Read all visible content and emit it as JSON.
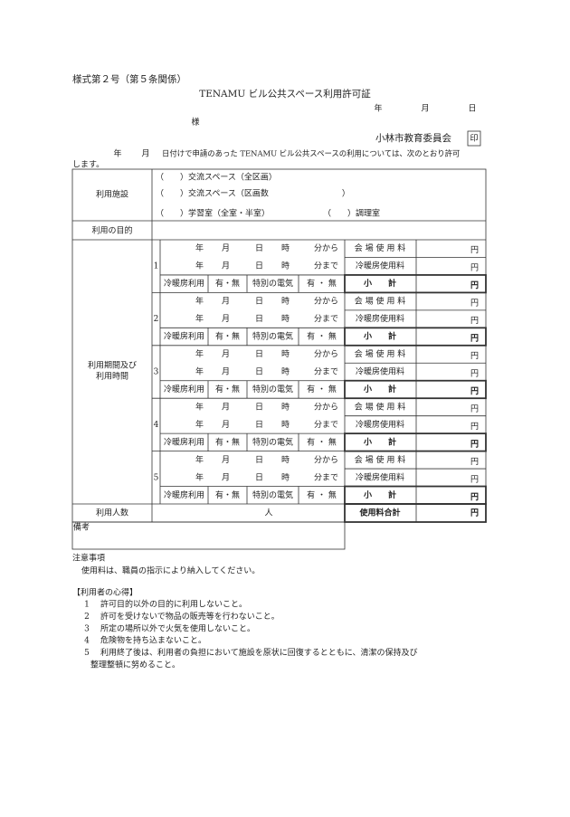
{
  "header": {
    "form_number": "様式第２号（第５条関係）",
    "title": "TENAMU ビル公共スペース利用許可証",
    "date": [
      "年",
      "月",
      "日"
    ],
    "addressee_suffix": "様",
    "issuer": "小林市教育委員会",
    "seal": "印",
    "intro_date": [
      "年",
      "月"
    ],
    "intro_line1": "日付けで申請のあった TENAMU ビル公共スペースの利用については、次のとおり許可",
    "intro_line2": "します。"
  },
  "table": {
    "facility_label": "利用施設",
    "facility_options": [
      [
        "（　　）交流スペース（全区画）"
      ],
      [
        "（　　）交流スペース（区画数　　　　　　　　　）"
      ],
      [
        "（　　）学習室（全室・半室）",
        "（　　）調理室"
      ]
    ],
    "purpose_label": "利用の目的",
    "period_label": [
      "利用期間及び",
      "利用時間"
    ],
    "periods": [
      {
        "number": "1",
        "start": [
          "年",
          "月",
          "日",
          "時",
          "分から"
        ],
        "end": [
          "年",
          "月",
          "日",
          "時",
          "分まで"
        ],
        "hall_fee": "会 場 使 用 料",
        "hall_unit": "円",
        "ac_fee": "冷暖房使用料",
        "ac_unit": "円",
        "ac_use": "冷暖房利用",
        "ac_choice": "有・無",
        "electric": "特別の電気",
        "electric_choice": "有 ・ 無",
        "subtotal": "小　　計",
        "subtotal_unit": "円"
      },
      {
        "number": "2",
        "start": [
          "年",
          "月",
          "日",
          "時",
          "分から"
        ],
        "end": [
          "年",
          "月",
          "日",
          "時",
          "分まで"
        ],
        "hall_fee": "会 場 使 用 料",
        "hall_unit": "円",
        "ac_fee": "冷暖房使用料",
        "ac_unit": "円",
        "ac_use": "冷暖房利用",
        "ac_choice": "有・無",
        "electric": "特別の電気",
        "electric_choice": "有 ・ 無",
        "subtotal": "小　　計",
        "subtotal_unit": "円"
      },
      {
        "number": "3",
        "start": [
          "年",
          "月",
          "日",
          "時",
          "分から"
        ],
        "end": [
          "年",
          "月",
          "日",
          "時",
          "分まで"
        ],
        "hall_fee": "会 場 使 用 料",
        "hall_unit": "円",
        "ac_fee": "冷暖房使用料",
        "ac_unit": "円",
        "ac_use": "冷暖房利用",
        "ac_choice": "有・無",
        "electric": "特別の電気",
        "electric_choice": "有 ・ 無",
        "subtotal": "小　　計",
        "subtotal_unit": "円"
      },
      {
        "number": "4",
        "start": [
          "年",
          "月",
          "日",
          "時",
          "分から"
        ],
        "end": [
          "年",
          "月",
          "日",
          "時",
          "分まで"
        ],
        "hall_fee": "会 場 使 用 料",
        "hall_unit": "円",
        "ac_fee": "冷暖房使用料",
        "ac_unit": "円",
        "ac_use": "冷暖房利用",
        "ac_choice": "有・無",
        "electric": "特別の電気",
        "electric_choice": "有 ・ 無",
        "subtotal": "小　　計",
        "subtotal_unit": "円"
      },
      {
        "number": "5",
        "start": [
          "年",
          "月",
          "日",
          "時",
          "分から"
        ],
        "end": [
          "年",
          "月",
          "日",
          "時",
          "分まで"
        ],
        "hall_fee": "会 場 使 用 料",
        "hall_unit": "円",
        "ac_fee": "冷暖房使用料",
        "ac_unit": "円",
        "ac_use": "冷暖房利用",
        "ac_choice": "有・無",
        "electric": "特別の電気",
        "electric_choice": "有 ・ 無",
        "subtotal": "小　　計",
        "subtotal_unit": "円"
      }
    ],
    "people_label": "利用人数",
    "people_unit": "人",
    "total_label": "使用料合計",
    "total_unit": "円",
    "remarks_label": "備考"
  },
  "notes": {
    "heading": "注意事項",
    "text": "使用料は、職員の指示により納入してください。"
  },
  "rules": {
    "heading": "【利用者の心得】",
    "items": [
      {
        "number": "1",
        "lines": [
          "許可目的以外の目的に利用しないこと。"
        ]
      },
      {
        "number": "2",
        "lines": [
          "許可を受けないで物品の販売等を行わないこと。"
        ]
      },
      {
        "number": "3",
        "lines": [
          "所定の場所以外で火気を使用しないこと。"
        ]
      },
      {
        "number": "4",
        "lines": [
          "危険物を持ち込まないこと。"
        ]
      },
      {
        "number": "5",
        "lines": [
          "利用終了後は、利用者の負担において施設を原状に回復するとともに、清潔の保持及び",
          "整理整頓に努めること。"
        ]
      }
    ]
  }
}
